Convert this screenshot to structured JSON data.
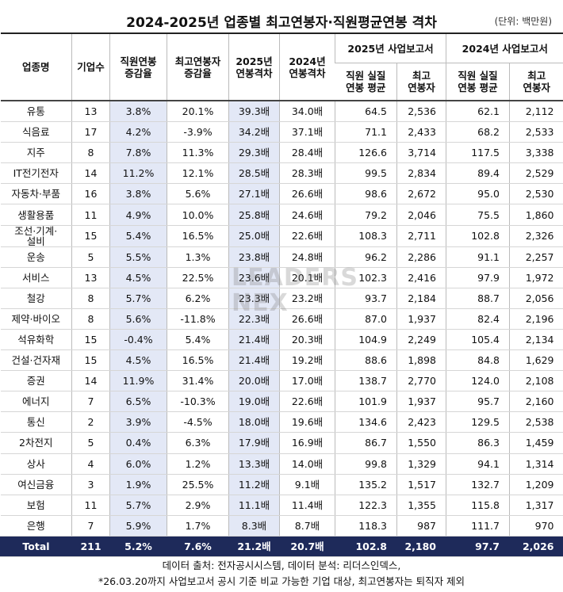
{
  "header": {
    "title": "2024-2025년 업종별 최고연봉자·직원평균연봉 격차",
    "unit": "(단위: 백만원)"
  },
  "table": {
    "columns": [
      "업종명",
      "기업수",
      "직원연봉\n증감율",
      "최고연봉자\n증감율",
      "2025년\n연봉격차",
      "2024년\n연봉격차"
    ],
    "groups": [
      {
        "title": "2025년 사업보고서",
        "sub": [
          "직원 실질\n연봉 평균",
          "최고\n연봉자"
        ]
      },
      {
        "title": "2024년 사업보고서",
        "sub": [
          "직원 실질\n연봉 평균",
          "최고\n연봉자"
        ]
      }
    ],
    "rows": [
      [
        "유통",
        "13",
        "3.8%",
        "20.1%",
        "39.3배",
        "34.0배",
        "64.5",
        "2,536",
        "62.1",
        "2,112"
      ],
      [
        "식음료",
        "17",
        "4.2%",
        "-3.9%",
        "34.2배",
        "37.1배",
        "71.1",
        "2,433",
        "68.2",
        "2,533"
      ],
      [
        "지주",
        "8",
        "7.8%",
        "11.3%",
        "29.3배",
        "28.4배",
        "126.6",
        "3,714",
        "117.5",
        "3,338"
      ],
      [
        "IT전기전자",
        "14",
        "11.2%",
        "12.1%",
        "28.5배",
        "28.3배",
        "99.5",
        "2,834",
        "89.4",
        "2,529"
      ],
      [
        "자동차·부품",
        "16",
        "3.8%",
        "5.6%",
        "27.1배",
        "26.6배",
        "98.6",
        "2,672",
        "95.0",
        "2,530"
      ],
      [
        "생활용품",
        "11",
        "4.9%",
        "10.0%",
        "25.8배",
        "24.6배",
        "79.2",
        "2,046",
        "75.5",
        "1,860"
      ],
      [
        "조선·기계·\n설비",
        "15",
        "5.4%",
        "16.5%",
        "25.0배",
        "22.6배",
        "108.3",
        "2,711",
        "102.8",
        "2,326"
      ],
      [
        "운송",
        "5",
        "5.5%",
        "1.3%",
        "23.8배",
        "24.8배",
        "96.2",
        "2,286",
        "91.1",
        "2,257"
      ],
      [
        "서비스",
        "13",
        "4.5%",
        "22.5%",
        "23.6배",
        "20.1배",
        "102.3",
        "2,416",
        "97.9",
        "1,972"
      ],
      [
        "철강",
        "8",
        "5.7%",
        "6.2%",
        "23.3배",
        "23.2배",
        "93.7",
        "2,184",
        "88.7",
        "2,056"
      ],
      [
        "제약·바이오",
        "8",
        "5.6%",
        "-11.8%",
        "22.3배",
        "26.6배",
        "87.0",
        "1,937",
        "82.4",
        "2,196"
      ],
      [
        "석유화학",
        "15",
        "-0.4%",
        "5.4%",
        "21.4배",
        "20.3배",
        "104.9",
        "2,249",
        "105.4",
        "2,134"
      ],
      [
        "건설·건자재",
        "15",
        "4.5%",
        "16.5%",
        "21.4배",
        "19.2배",
        "88.6",
        "1,898",
        "84.8",
        "1,629"
      ],
      [
        "증권",
        "14",
        "11.9%",
        "31.4%",
        "20.0배",
        "17.0배",
        "138.7",
        "2,770",
        "124.0",
        "2,108"
      ],
      [
        "에너지",
        "7",
        "6.5%",
        "-10.3%",
        "19.0배",
        "22.6배",
        "101.9",
        "1,937",
        "95.7",
        "2,160"
      ],
      [
        "통신",
        "2",
        "3.9%",
        "-4.5%",
        "18.0배",
        "19.6배",
        "134.6",
        "2,423",
        "129.5",
        "2,538"
      ],
      [
        "2차전지",
        "5",
        "0.4%",
        "6.3%",
        "17.9배",
        "16.9배",
        "86.7",
        "1,550",
        "86.3",
        "1,459"
      ],
      [
        "상사",
        "4",
        "6.0%",
        "1.2%",
        "13.3배",
        "14.0배",
        "99.8",
        "1,329",
        "94.1",
        "1,314"
      ],
      [
        "여신금융",
        "3",
        "1.9%",
        "25.5%",
        "11.2배",
        "9.1배",
        "135.2",
        "1,517",
        "132.7",
        "1,209"
      ],
      [
        "보험",
        "11",
        "5.7%",
        "2.9%",
        "11.1배",
        "11.4배",
        "122.3",
        "1,355",
        "115.8",
        "1,317"
      ],
      [
        "은행",
        "7",
        "5.9%",
        "1.7%",
        "8.3배",
        "8.7배",
        "118.3",
        "987",
        "111.7",
        "970"
      ]
    ],
    "total": [
      "Total",
      "211",
      "5.2%",
      "7.6%",
      "21.2배",
      "20.7배",
      "102.8",
      "2,180",
      "97.7",
      "2,026"
    ]
  },
  "watermark": [
    "LEADERS",
    "NEX"
  ],
  "footer": [
    "데이터 출처: 전자공시시스템, 데이터 분석: 리더스인덱스,",
    "*26.03.20까지 사업보고서 공시 기준 비교 가능한 기업 대상, 최고연봉자는 퇴직자 제외"
  ]
}
